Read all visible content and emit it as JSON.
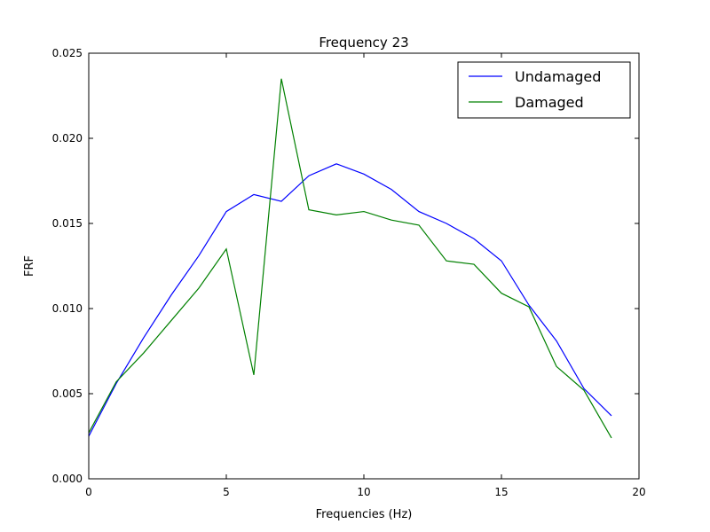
{
  "chart_data": {
    "type": "line",
    "title": "Frequency 23",
    "xlabel": "Frequencies (Hz)",
    "ylabel": "FRF",
    "xlim": [
      0,
      20
    ],
    "ylim": [
      0,
      0.025
    ],
    "x_ticks": [
      0,
      5,
      10,
      15,
      20
    ],
    "x_tick_labels": [
      "0",
      "5",
      "10",
      "15",
      "20"
    ],
    "y_ticks": [
      0,
      0.005,
      0.01,
      0.015,
      0.02,
      0.025
    ],
    "y_tick_labels": [
      "0.000",
      "0.005",
      "0.010",
      "0.015",
      "0.020",
      "0.025"
    ],
    "grid": false,
    "legend_position": "top-right",
    "x": [
      0,
      1,
      2,
      3,
      4,
      5,
      6,
      7,
      8,
      9,
      10,
      11,
      12,
      13,
      14,
      15,
      16,
      17,
      18,
      19
    ],
    "series": [
      {
        "name": "Undamaged",
        "color": "#0000ff",
        "values": [
          0.0025,
          0.0056,
          0.0083,
          0.0108,
          0.0131,
          0.0157,
          0.0167,
          0.0163,
          0.0178,
          0.0185,
          0.0179,
          0.017,
          0.0157,
          0.015,
          0.0141,
          0.0128,
          0.0102,
          0.0081,
          0.0053,
          0.0037
        ]
      },
      {
        "name": "Damaged",
        "color": "#008000",
        "values": [
          0.0027,
          0.0057,
          0.0074,
          0.0093,
          0.0112,
          0.0135,
          0.0061,
          0.0235,
          0.0158,
          0.0155,
          0.0157,
          0.0152,
          0.0149,
          0.0128,
          0.0126,
          0.0109,
          0.0101,
          0.0066,
          0.0052,
          0.0024
        ]
      }
    ]
  }
}
